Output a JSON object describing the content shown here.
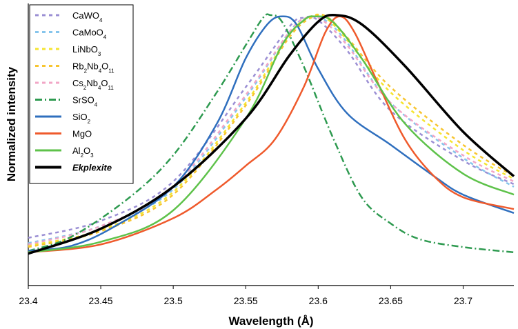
{
  "chart_data": {
    "type": "line",
    "title": "",
    "xlabel": "Wavelength (Å)",
    "ylabel": "Normalized intensity",
    "xlim": [
      23.4,
      23.735
    ],
    "ylim": [
      0,
      1
    ],
    "x_ticks": [
      "23.4",
      "23.45",
      "23.5",
      "23.55",
      "23.6",
      "23.65",
      "23.7"
    ],
    "grid": false,
    "legend_position": "top-left",
    "series": [
      {
        "name": "CaWO4",
        "html_label": "CaWO<tspan baseline-shift='sub' font-size='8'>4</tspan>",
        "color": "#9b8fd4",
        "dash": "dotted",
        "points": [
          [
            23.4,
            0.145
          ],
          [
            23.45,
            0.21
          ],
          [
            23.5,
            0.36
          ],
          [
            23.55,
            0.72
          ],
          [
            23.58,
            0.95
          ],
          [
            23.59,
            0.985
          ],
          [
            23.6,
            0.975
          ],
          [
            23.62,
            0.86
          ],
          [
            23.65,
            0.63
          ],
          [
            23.7,
            0.44
          ],
          [
            23.735,
            0.35
          ]
        ]
      },
      {
        "name": "CaMoO4",
        "html_label": "CaMoO<tspan baseline-shift='sub' font-size='8'>4</tspan>",
        "color": "#86c5ec",
        "dash": "dotted",
        "points": [
          [
            23.4,
            0.125
          ],
          [
            23.45,
            0.19
          ],
          [
            23.5,
            0.33
          ],
          [
            23.55,
            0.68
          ],
          [
            23.58,
            0.93
          ],
          [
            23.593,
            0.985
          ],
          [
            23.605,
            0.975
          ],
          [
            23.62,
            0.89
          ],
          [
            23.65,
            0.66
          ],
          [
            23.7,
            0.45
          ],
          [
            23.735,
            0.34
          ]
        ]
      },
      {
        "name": "LiNbO3",
        "html_label": "LiNbO<tspan baseline-shift='sub' font-size='8'>3</tspan>",
        "color": "#f5e530",
        "dash": "dotted",
        "points": [
          [
            23.4,
            0.115
          ],
          [
            23.45,
            0.175
          ],
          [
            23.5,
            0.32
          ],
          [
            23.55,
            0.66
          ],
          [
            23.58,
            0.92
          ],
          [
            23.595,
            0.99
          ],
          [
            23.605,
            0.985
          ],
          [
            23.62,
            0.9
          ],
          [
            23.65,
            0.7
          ],
          [
            23.7,
            0.48
          ],
          [
            23.735,
            0.37
          ]
        ]
      },
      {
        "name": "Rb2Nb4O11",
        "html_label": "Rb<tspan baseline-shift='sub' font-size='8'>2</tspan><tspan dy='0'>Nb</tspan><tspan baseline-shift='sub' font-size='8'>4</tspan><tspan>O</tspan><tspan baseline-shift='sub' font-size='8'>11</tspan>",
        "color": "#f7c530",
        "dash": "dotted",
        "points": [
          [
            23.4,
            0.11
          ],
          [
            23.45,
            0.17
          ],
          [
            23.5,
            0.31
          ],
          [
            23.55,
            0.65
          ],
          [
            23.58,
            0.91
          ],
          [
            23.597,
            0.99
          ],
          [
            23.607,
            0.985
          ],
          [
            23.62,
            0.91
          ],
          [
            23.65,
            0.72
          ],
          [
            23.7,
            0.5
          ],
          [
            23.735,
            0.38
          ]
        ]
      },
      {
        "name": "Cs2Nb4O11",
        "html_label": "Cs<tspan baseline-shift='sub' font-size='8'>2</tspan><tspan>Nb</tspan><tspan baseline-shift='sub' font-size='8'>4</tspan><tspan>O</tspan><tspan baseline-shift='sub' font-size='8'>11</tspan>",
        "color": "#f2a6c6",
        "dash": "dotted",
        "points": [
          [
            23.4,
            0.12
          ],
          [
            23.45,
            0.19
          ],
          [
            23.5,
            0.34
          ],
          [
            23.55,
            0.69
          ],
          [
            23.58,
            0.93
          ],
          [
            23.592,
            0.985
          ],
          [
            23.603,
            0.975
          ],
          [
            23.62,
            0.88
          ],
          [
            23.65,
            0.66
          ],
          [
            23.7,
            0.46
          ],
          [
            23.735,
            0.36
          ]
        ]
      },
      {
        "name": "SrSO4",
        "html_label": "SrSO<tspan baseline-shift='sub' font-size='8'>4</tspan>",
        "color": "#2e9a50",
        "dash": "dashdot",
        "points": [
          [
            23.4,
            0.095
          ],
          [
            23.43,
            0.15
          ],
          [
            23.47,
            0.3
          ],
          [
            23.5,
            0.46
          ],
          [
            23.53,
            0.7
          ],
          [
            23.55,
            0.88
          ],
          [
            23.562,
            0.985
          ],
          [
            23.567,
            0.995
          ],
          [
            23.575,
            0.97
          ],
          [
            23.59,
            0.8
          ],
          [
            23.61,
            0.53
          ],
          [
            23.63,
            0.3
          ],
          [
            23.65,
            0.2
          ],
          [
            23.67,
            0.14
          ],
          [
            23.7,
            0.11
          ],
          [
            23.735,
            0.09
          ]
        ]
      },
      {
        "name": "SiO2",
        "html_label": "SiO<tspan baseline-shift='sub' font-size='8'>2</tspan>",
        "color": "#2f6fbe",
        "dash": "solid",
        "points": [
          [
            23.4,
            0.095
          ],
          [
            23.43,
            0.115
          ],
          [
            23.46,
            0.19
          ],
          [
            23.5,
            0.34
          ],
          [
            23.53,
            0.58
          ],
          [
            23.55,
            0.83
          ],
          [
            23.565,
            0.96
          ],
          [
            23.575,
            0.99
          ],
          [
            23.585,
            0.96
          ],
          [
            23.6,
            0.79
          ],
          [
            23.62,
            0.62
          ],
          [
            23.65,
            0.5
          ],
          [
            23.68,
            0.38
          ],
          [
            23.7,
            0.31
          ],
          [
            23.735,
            0.24
          ]
        ]
      },
      {
        "name": "MgO",
        "html_label": "MgO",
        "color": "#ef5a2c",
        "dash": "solid",
        "points": [
          [
            23.4,
            0.09
          ],
          [
            23.45,
            0.12
          ],
          [
            23.5,
            0.22
          ],
          [
            23.53,
            0.33
          ],
          [
            23.55,
            0.42
          ],
          [
            23.57,
            0.52
          ],
          [
            23.59,
            0.72
          ],
          [
            23.605,
            0.93
          ],
          [
            23.615,
            0.99
          ],
          [
            23.625,
            0.93
          ],
          [
            23.64,
            0.75
          ],
          [
            23.66,
            0.52
          ],
          [
            23.68,
            0.38
          ],
          [
            23.7,
            0.3
          ],
          [
            23.735,
            0.255
          ]
        ]
      },
      {
        "name": "Al2O3",
        "html_label": "Al<tspan baseline-shift='sub' font-size='8'>2</tspan><tspan>O</tspan><tspan baseline-shift='sub' font-size='8'>3</tspan>",
        "color": "#5ec24a",
        "dash": "solid",
        "points": [
          [
            23.4,
            0.09
          ],
          [
            23.45,
            0.13
          ],
          [
            23.5,
            0.25
          ],
          [
            23.55,
            0.6
          ],
          [
            23.575,
            0.88
          ],
          [
            23.59,
            0.975
          ],
          [
            23.598,
            0.99
          ],
          [
            23.61,
            0.97
          ],
          [
            23.63,
            0.83
          ],
          [
            23.66,
            0.58
          ],
          [
            23.7,
            0.39
          ],
          [
            23.735,
            0.31
          ]
        ]
      },
      {
        "name": "Ekplexite",
        "html_label": "Ekplexite",
        "color": "#000000",
        "dash": "solid",
        "bold": true,
        "italic": true,
        "points": [
          [
            23.4,
            0.085
          ],
          [
            23.45,
            0.18
          ],
          [
            23.5,
            0.34
          ],
          [
            23.55,
            0.6
          ],
          [
            23.58,
            0.84
          ],
          [
            23.6,
            0.97
          ],
          [
            23.612,
            0.995
          ],
          [
            23.63,
            0.96
          ],
          [
            23.66,
            0.8
          ],
          [
            23.7,
            0.55
          ],
          [
            23.735,
            0.38
          ]
        ]
      }
    ]
  }
}
